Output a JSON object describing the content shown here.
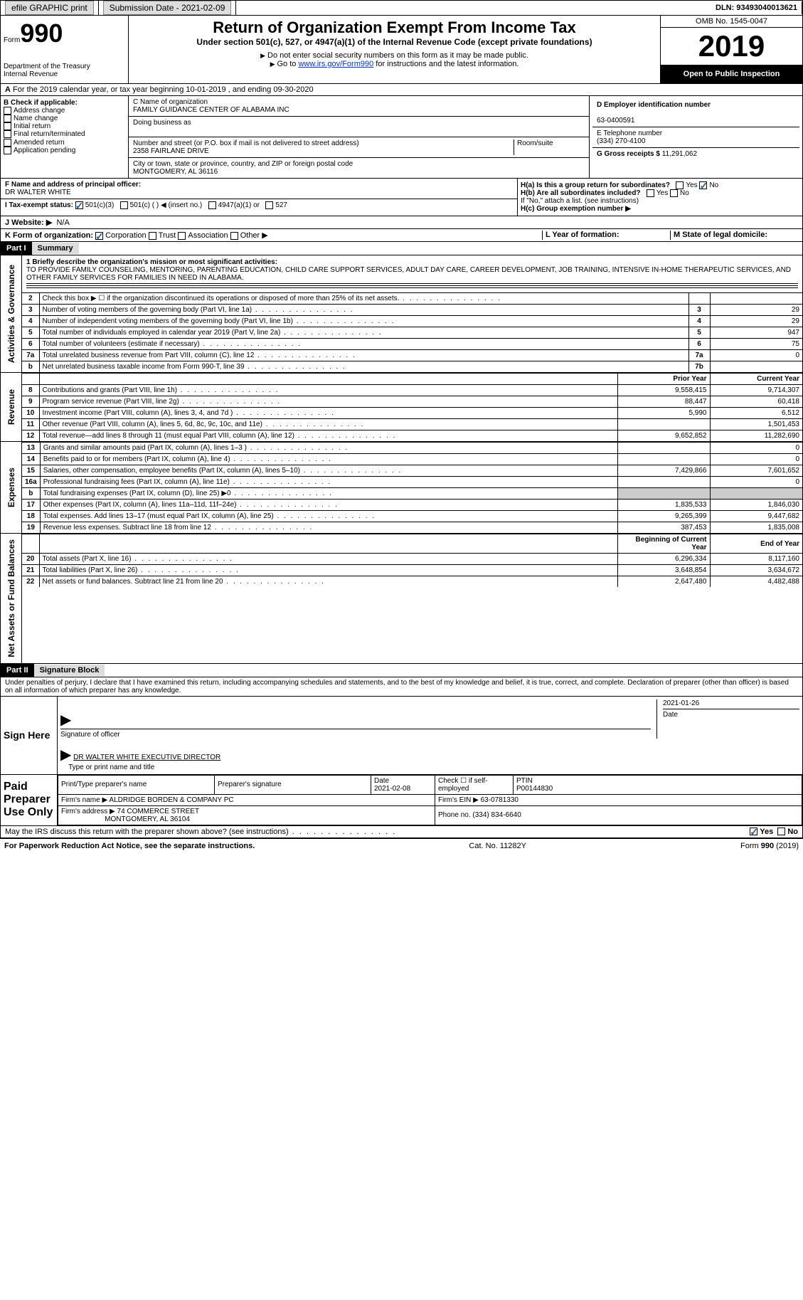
{
  "topbar": {
    "efile": "efile GRAPHIC print",
    "submission": "Submission Date - 2021-02-09",
    "dln": "DLN: 93493040013621"
  },
  "header": {
    "form": "Form",
    "num": "990",
    "dept": "Department of the Treasury",
    "irs": "Internal Revenue",
    "title": "Return of Organization Exempt From Income Tax",
    "subtitle": "Under section 501(c), 527, or 4947(a)(1) of the Internal Revenue Code (except private foundations)",
    "note1": "Do not enter social security numbers on this form as it may be made public.",
    "note2_pre": "Go to ",
    "note2_link": "www.irs.gov/Form990",
    "note2_post": " for instructions and the latest information.",
    "omb": "OMB No. 1545-0047",
    "year": "2019",
    "inspection": "Open to Public Inspection"
  },
  "line_a": "For the 2019 calendar year, or tax year beginning 10-01-2019    , and ending 09-30-2020",
  "box_b": {
    "label": "B Check if applicable:",
    "items": [
      "Address change",
      "Name change",
      "Initial return",
      "Final return/terminated",
      "Amended return",
      "Application pending"
    ]
  },
  "box_c": {
    "name_label": "C Name of organization",
    "name": "FAMILY GUIDANCE CENTER OF ALABAMA INC",
    "dba_label": "Doing business as",
    "addr_label": "Number and street (or P.O. box if mail is not delivered to street address)",
    "room": "Room/suite",
    "addr": "2358 FAIRLANE DRIVE",
    "city_label": "City or town, state or province, country, and ZIP or foreign postal code",
    "city": "MONTGOMERY, AL  36116"
  },
  "box_d": {
    "label": "D Employer identification number",
    "val": "63-0400591"
  },
  "box_e": {
    "label": "E Telephone number",
    "val": "(334) 270-4100"
  },
  "box_g": {
    "label": "G Gross receipts $",
    "val": "11,291,062"
  },
  "box_f": {
    "label": "F Name and address of principal officer:",
    "val": "DR WALTER WHITE"
  },
  "box_h": {
    "ha": "H(a)  Is this a group return for subordinates?",
    "hb": "H(b)  Are all subordinates included?",
    "hb_note": "If \"No,\" attach a list. (see instructions)",
    "hc": "H(c)  Group exemption number ▶"
  },
  "box_i": {
    "label": "I   Tax-exempt status:",
    "opts": [
      "501(c)(3)",
      "501(c) (  ) ◀ (insert no.)",
      "4947(a)(1) or",
      "527"
    ]
  },
  "box_j": {
    "label": "J   Website: ▶",
    "val": "N/A"
  },
  "box_k": {
    "label": "K Form of organization:",
    "opts": [
      "Corporation",
      "Trust",
      "Association",
      "Other ▶"
    ]
  },
  "box_l": "L Year of formation:",
  "box_m": "M State of legal domicile:",
  "part1": {
    "num": "Part I",
    "title": "Summary"
  },
  "mission": {
    "q": "1  Briefly describe the organization's mission or most significant activities:",
    "text": "TO PROVIDE FAMILY COUNSELING, MENTORING, PARENTING EDUCATION, CHILD CARE SUPPORT SERVICES, ADULT DAY CARE, CAREER DEVELOPMENT, JOB TRAINING, INTENSIVE IN-HOME THERAPEUTIC SERVICES, AND OTHER FAMILY SERVICES FOR FAMILIES IN NEED IN ALABAMA."
  },
  "gov_lines": [
    {
      "n": "2",
      "t": "Check this box ▶ ☐  if the organization discontinued its operations or disposed of more than 25% of its net assets.",
      "ln": "",
      "v": ""
    },
    {
      "n": "3",
      "t": "Number of voting members of the governing body (Part VI, line 1a)",
      "ln": "3",
      "v": "29"
    },
    {
      "n": "4",
      "t": "Number of independent voting members of the governing body (Part VI, line 1b)",
      "ln": "4",
      "v": "29"
    },
    {
      "n": "5",
      "t": "Total number of individuals employed in calendar year 2019 (Part V, line 2a)",
      "ln": "5",
      "v": "947"
    },
    {
      "n": "6",
      "t": "Total number of volunteers (estimate if necessary)",
      "ln": "6",
      "v": "75"
    },
    {
      "n": "7a",
      "t": "Total unrelated business revenue from Part VIII, column (C), line 12",
      "ln": "7a",
      "v": "0"
    },
    {
      "n": "b",
      "t": "Net unrelated business taxable income from Form 990-T, line 39",
      "ln": "7b",
      "v": ""
    }
  ],
  "rev_head": {
    "py": "Prior Year",
    "cy": "Current Year"
  },
  "rev_lines": [
    {
      "n": "8",
      "t": "Contributions and grants (Part VIII, line 1h)",
      "py": "9,558,415",
      "cy": "9,714,307"
    },
    {
      "n": "9",
      "t": "Program service revenue (Part VIII, line 2g)",
      "py": "88,447",
      "cy": "60,418"
    },
    {
      "n": "10",
      "t": "Investment income (Part VIII, column (A), lines 3, 4, and 7d )",
      "py": "5,990",
      "cy": "6,512"
    },
    {
      "n": "11",
      "t": "Other revenue (Part VIII, column (A), lines 5, 6d, 8c, 9c, 10c, and 11e)",
      "py": "",
      "cy": "1,501,453"
    },
    {
      "n": "12",
      "t": "Total revenue—add lines 8 through 11 (must equal Part VIII, column (A), line 12)",
      "py": "9,652,852",
      "cy": "11,282,690"
    }
  ],
  "exp_lines": [
    {
      "n": "13",
      "t": "Grants and similar amounts paid (Part IX, column (A), lines 1–3 )",
      "py": "",
      "cy": "0"
    },
    {
      "n": "14",
      "t": "Benefits paid to or for members (Part IX, column (A), line 4)",
      "py": "",
      "cy": "0"
    },
    {
      "n": "15",
      "t": "Salaries, other compensation, employee benefits (Part IX, column (A), lines 5–10)",
      "py": "7,429,866",
      "cy": "7,601,652"
    },
    {
      "n": "16a",
      "t": "Professional fundraising fees (Part IX, column (A), line 11e)",
      "py": "",
      "cy": "0"
    },
    {
      "n": "b",
      "t": "Total fundraising expenses (Part IX, column (D), line 25) ▶0",
      "py": "shaded",
      "cy": "shaded"
    },
    {
      "n": "17",
      "t": "Other expenses (Part IX, column (A), lines 11a–11d, 11f–24e)",
      "py": "1,835,533",
      "cy": "1,846,030"
    },
    {
      "n": "18",
      "t": "Total expenses. Add lines 13–17 (must equal Part IX, column (A), line 25)",
      "py": "9,265,399",
      "cy": "9,447,682"
    },
    {
      "n": "19",
      "t": "Revenue less expenses. Subtract line 18 from line 12",
      "py": "387,453",
      "cy": "1,835,008"
    }
  ],
  "na_head": {
    "py": "Beginning of Current Year",
    "cy": "End of Year"
  },
  "na_lines": [
    {
      "n": "20",
      "t": "Total assets (Part X, line 16)",
      "py": "6,296,334",
      "cy": "8,117,160"
    },
    {
      "n": "21",
      "t": "Total liabilities (Part X, line 26)",
      "py": "3,648,854",
      "cy": "3,634,672"
    },
    {
      "n": "22",
      "t": "Net assets or fund balances. Subtract line 21 from line 20",
      "py": "2,647,480",
      "cy": "4,482,488"
    }
  ],
  "sidetabs": {
    "gov": "Activities & Governance",
    "rev": "Revenue",
    "exp": "Expenses",
    "na": "Net Assets or Fund Balances"
  },
  "part2": {
    "num": "Part II",
    "title": "Signature Block"
  },
  "sig": {
    "decl": "Under penalties of perjury, I declare that I have examined this return, including accompanying schedules and statements, and to the best of my knowledge and belief, it is true, correct, and complete. Declaration of preparer (other than officer) is based on all information of which preparer has any knowledge.",
    "sign_here": "Sign Here",
    "sig_officer": "Signature of officer",
    "date": "Date",
    "sig_date": "2021-01-26",
    "name_title": "DR WALTER WHITE  EXECUTIVE DIRECTOR",
    "name_label": "Type or print name and title"
  },
  "prep": {
    "label": "Paid Preparer Use Only",
    "h1": "Print/Type preparer's name",
    "h2": "Preparer's signature",
    "h3": "Date",
    "h3v": "2021-02-08",
    "h4": "Check ☐ if self-employed",
    "h5": "PTIN",
    "h5v": "P00144830",
    "firm_name_l": "Firm's name    ▶",
    "firm_name": "ALDRIDGE BORDEN & COMPANY PC",
    "firm_ein_l": "Firm's EIN ▶",
    "firm_ein": "63-0781330",
    "firm_addr_l": "Firm's address ▶",
    "firm_addr": "74 COMMERCE STREET",
    "firm_city": "MONTGOMERY, AL  36104",
    "phone_l": "Phone no.",
    "phone": "(334) 834-6640"
  },
  "discuss": "May the IRS discuss this return with the preparer shown above? (see instructions)",
  "footer": {
    "l": "For Paperwork Reduction Act Notice, see the separate instructions.",
    "m": "Cat. No. 11282Y",
    "r": "Form 990 (2019)"
  }
}
